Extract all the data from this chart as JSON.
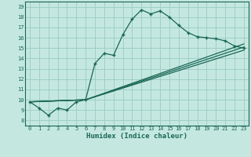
{
  "xlabel": "Humidex (Indice chaleur)",
  "ylabel": "",
  "background_color": "#c4e8e0",
  "grid_color": "#9ecfc8",
  "line_color": "#1a6655",
  "xlim": [
    -0.5,
    23.5
  ],
  "ylim": [
    7.5,
    19.5
  ],
  "xticks": [
    0,
    1,
    2,
    3,
    4,
    5,
    6,
    7,
    8,
    9,
    10,
    11,
    12,
    13,
    14,
    15,
    16,
    17,
    18,
    19,
    20,
    21,
    22,
    23
  ],
  "yticks": [
    8,
    9,
    10,
    11,
    12,
    13,
    14,
    15,
    16,
    17,
    18,
    19
  ],
  "line1_x": [
    0,
    1,
    2,
    3,
    4,
    5,
    6,
    7,
    8,
    9,
    10,
    11,
    12,
    13,
    14,
    15,
    16,
    17,
    18,
    19,
    20,
    21,
    22,
    23
  ],
  "line1_y": [
    9.8,
    9.2,
    8.5,
    9.2,
    9.0,
    9.8,
    10.0,
    13.5,
    14.5,
    14.3,
    16.3,
    17.8,
    18.7,
    18.3,
    18.6,
    18.0,
    17.2,
    16.5,
    16.1,
    16.0,
    15.9,
    15.7,
    15.2,
    15.0
  ],
  "line2_x": [
    0,
    6,
    23
  ],
  "line2_y": [
    9.8,
    10.0,
    15.1
  ],
  "line3_x": [
    0,
    6,
    23
  ],
  "line3_y": [
    9.8,
    10.0,
    14.8
  ],
  "line4_x": [
    0,
    6,
    23
  ],
  "line4_y": [
    9.8,
    10.0,
    15.4
  ]
}
